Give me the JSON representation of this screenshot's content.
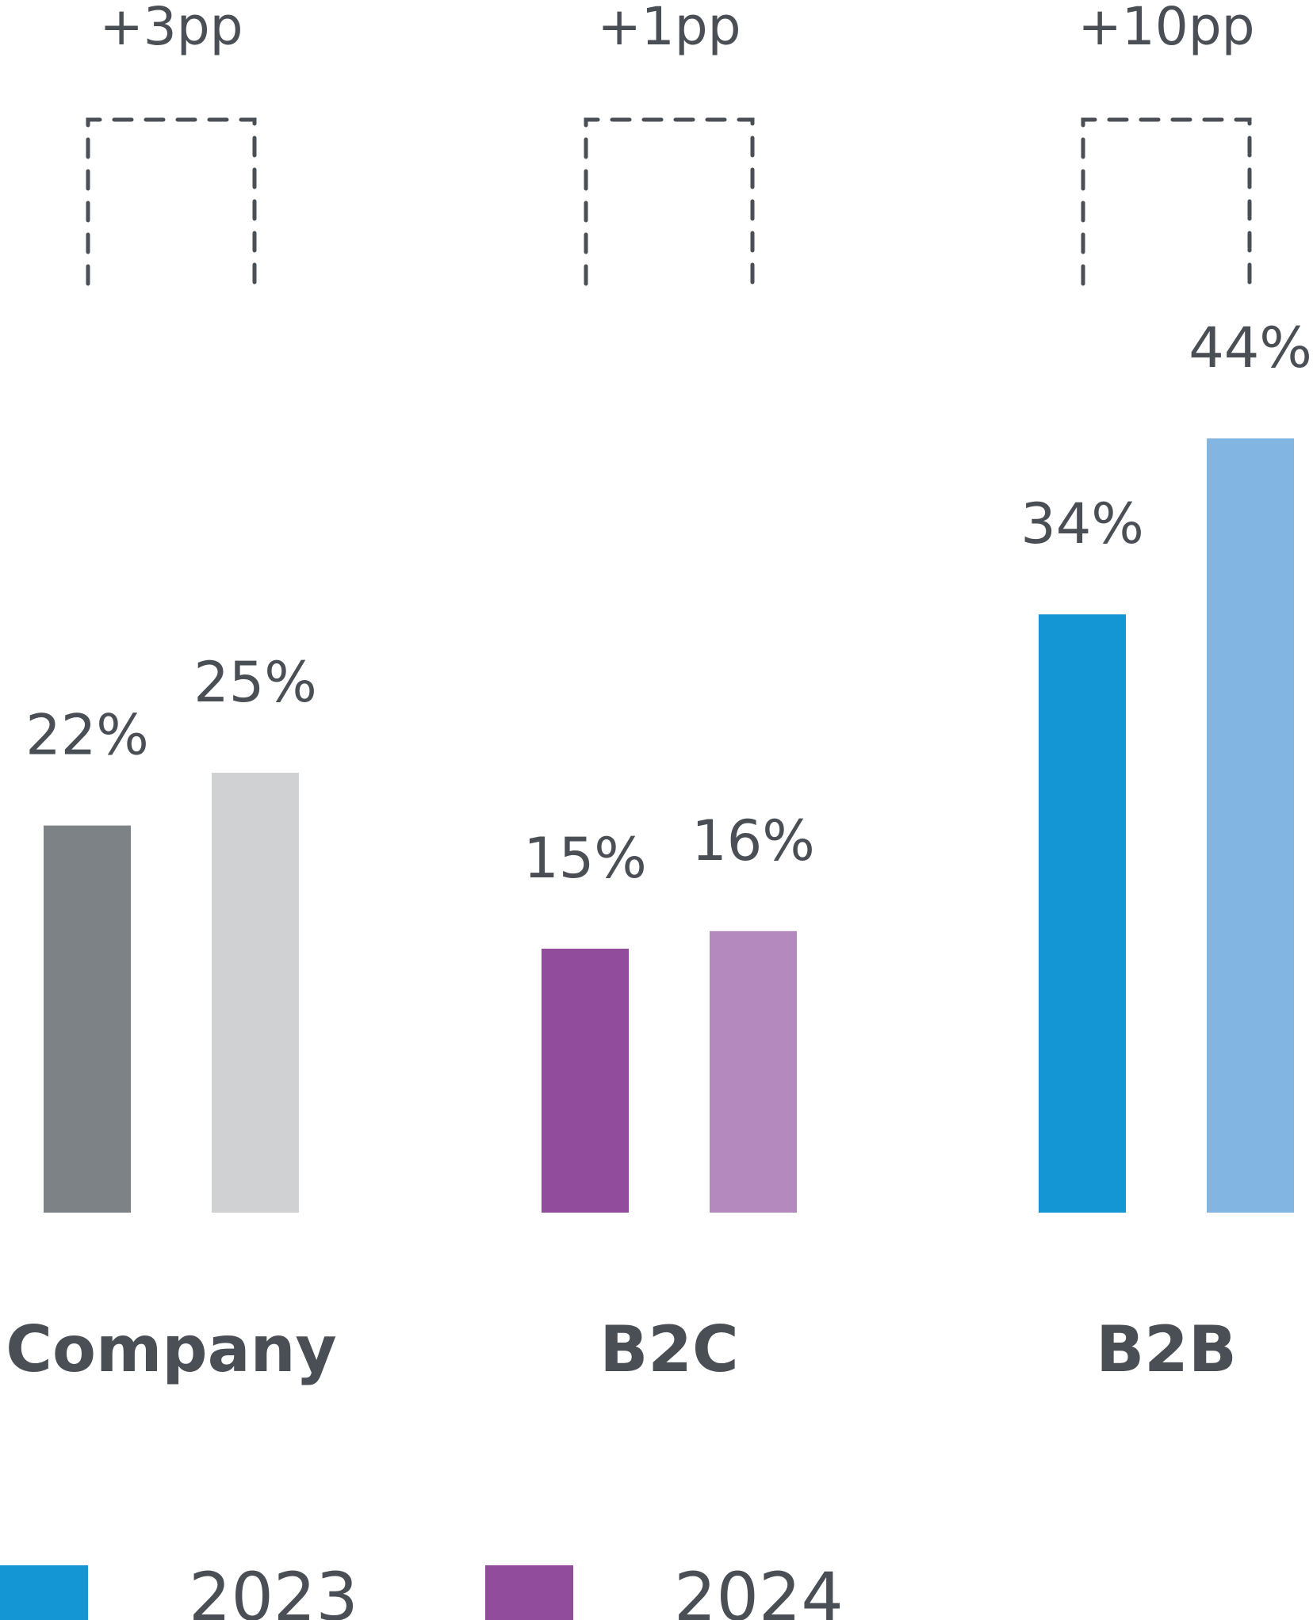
{
  "chart_data": {
    "type": "bar",
    "categories": [
      "Company",
      "B2C",
      "B2B"
    ],
    "unit": "%",
    "ylim": [
      0,
      50
    ],
    "series": [
      {
        "name": "2023",
        "values": [
          22,
          15,
          34
        ],
        "colors": [
          "#7d8287",
          "#914d9c",
          "#1596d4"
        ]
      },
      {
        "name": "2024",
        "values": [
          25,
          16,
          44
        ],
        "colors": [
          "#d0d1d3",
          "#b489bd",
          "#83b5e3"
        ]
      }
    ],
    "value_labels": [
      [
        "22%",
        "15%",
        "34%"
      ],
      [
        "25%",
        "16%",
        "44%"
      ]
    ],
    "differences": [
      "+3pp",
      "+1pp",
      "+10pp"
    ],
    "legend": [
      {
        "label": "2023",
        "color": "#1596d4"
      },
      {
        "label": "2024",
        "color": "#914d9c"
      }
    ],
    "title": "",
    "xlabel": "",
    "ylabel": "",
    "grid": false,
    "legend_position": "bottom-left"
  }
}
